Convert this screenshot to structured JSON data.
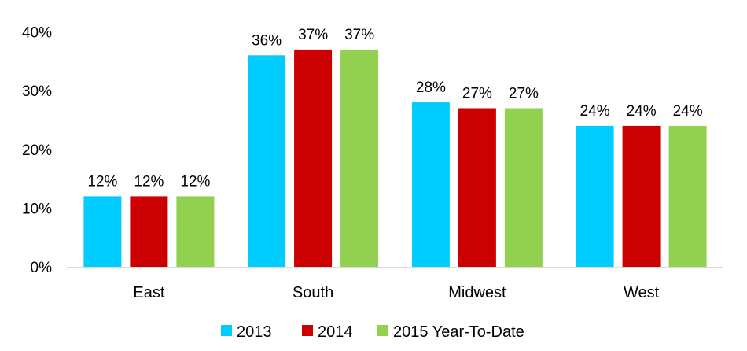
{
  "chart_data": {
    "type": "bar",
    "categories": [
      "East",
      "South",
      "Midwest",
      "West"
    ],
    "series": [
      {
        "name": "2013",
        "color": "#00CCFF",
        "values": [
          12,
          36,
          28,
          24
        ],
        "labels": [
          "12%",
          "36%",
          "28%",
          "24%"
        ]
      },
      {
        "name": "2014",
        "color": "#CC0000",
        "values": [
          12,
          37,
          27,
          24
        ],
        "labels": [
          "12%",
          "37%",
          "27%",
          "24%"
        ]
      },
      {
        "name": "2015 Year-To-Date",
        "color": "#92D050",
        "values": [
          12,
          37,
          27,
          24
        ],
        "labels": [
          "12%",
          "37%",
          "27%",
          "24%"
        ]
      }
    ],
    "ylim": [
      0,
      40
    ],
    "yticks": [
      0,
      10,
      20,
      30,
      40
    ],
    "ytick_labels": [
      "0%",
      "10%",
      "20%",
      "30%",
      "40%"
    ],
    "grid": false,
    "legend_position": "bottom-center",
    "title": "",
    "xlabel": "",
    "ylabel": ""
  }
}
